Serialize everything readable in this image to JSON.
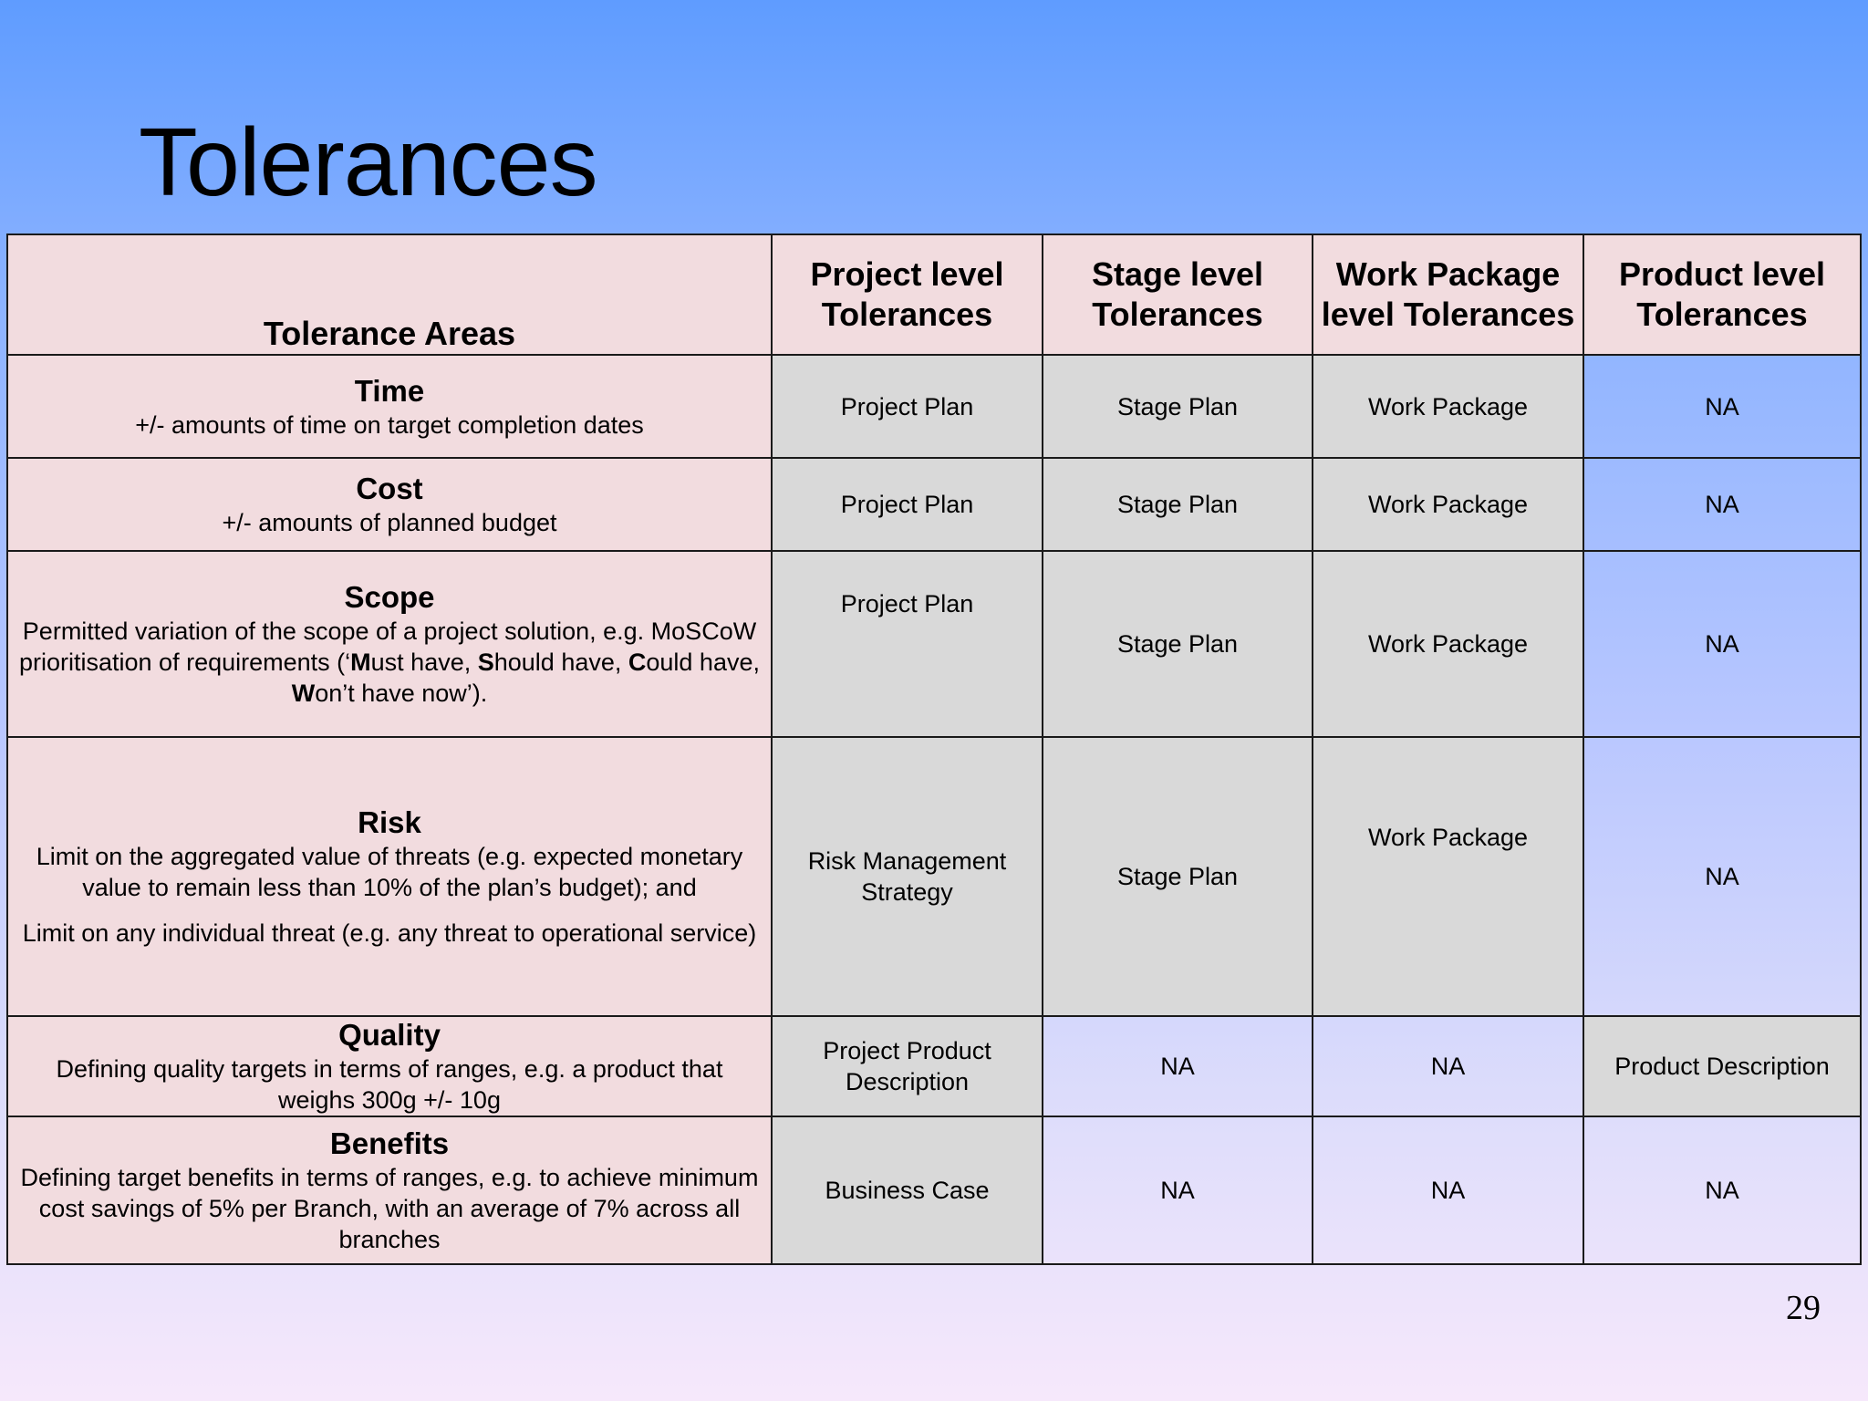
{
  "slide": {
    "title": "Tolerances",
    "page_number": "29"
  },
  "table": {
    "headers": [
      "Tolerance Areas",
      "Project level Tolerances",
      "Stage level Tolerances",
      "Work Package level Tolerances",
      "Product level Tolerances"
    ],
    "rows": [
      {
        "area": "Time",
        "description": "+/- amounts of time on target completion dates",
        "values": [
          "Project Plan",
          "Stage Plan",
          "Work Package",
          "NA"
        ]
      },
      {
        "area": "Cost",
        "description": "+/- amounts of planned budget",
        "values": [
          "Project Plan",
          "Stage Plan",
          "Work Package",
          "NA"
        ]
      },
      {
        "area": "Scope",
        "description_parts": [
          "Permitted variation of the scope of a project solution, e.g. MoSCoW prioritisation of requirements (‘",
          "M",
          "ust have, ",
          "S",
          "hould have, ",
          "C",
          "ould have, ",
          "W",
          "on’t have now’)."
        ],
        "values": [
          "Project Plan",
          "Stage Plan",
          "Work Package",
          "NA"
        ]
      },
      {
        "area": "Risk",
        "description": "Limit on the aggregated value of threats (e.g. expected monetary value to remain less than 10% of the plan’s budget); and",
        "description_2": "Limit on any individual threat (e.g.  any threat to operational service)",
        "values": [
          "Risk Management Strategy",
          "Stage Plan",
          "Work Package",
          "NA"
        ]
      },
      {
        "area": "Quality",
        "description": "Defining quality targets in terms of ranges, e.g. a product that weighs 300g +/- 10g",
        "values": [
          "Project Product Description",
          "NA",
          "NA",
          "Product Description"
        ]
      },
      {
        "area": "Benefits",
        "description": "Defining target benefits in terms of ranges, e.g. to achieve minimum cost savings of 5% per Branch, with an average of 7% across all branches",
        "values": [
          "Business Case",
          "NA",
          "NA",
          "NA"
        ]
      }
    ]
  },
  "colors": {
    "area_cell": "#f2dcdf",
    "assigned_cell": "#d9d9d9",
    "border": "#1a1a1a"
  }
}
